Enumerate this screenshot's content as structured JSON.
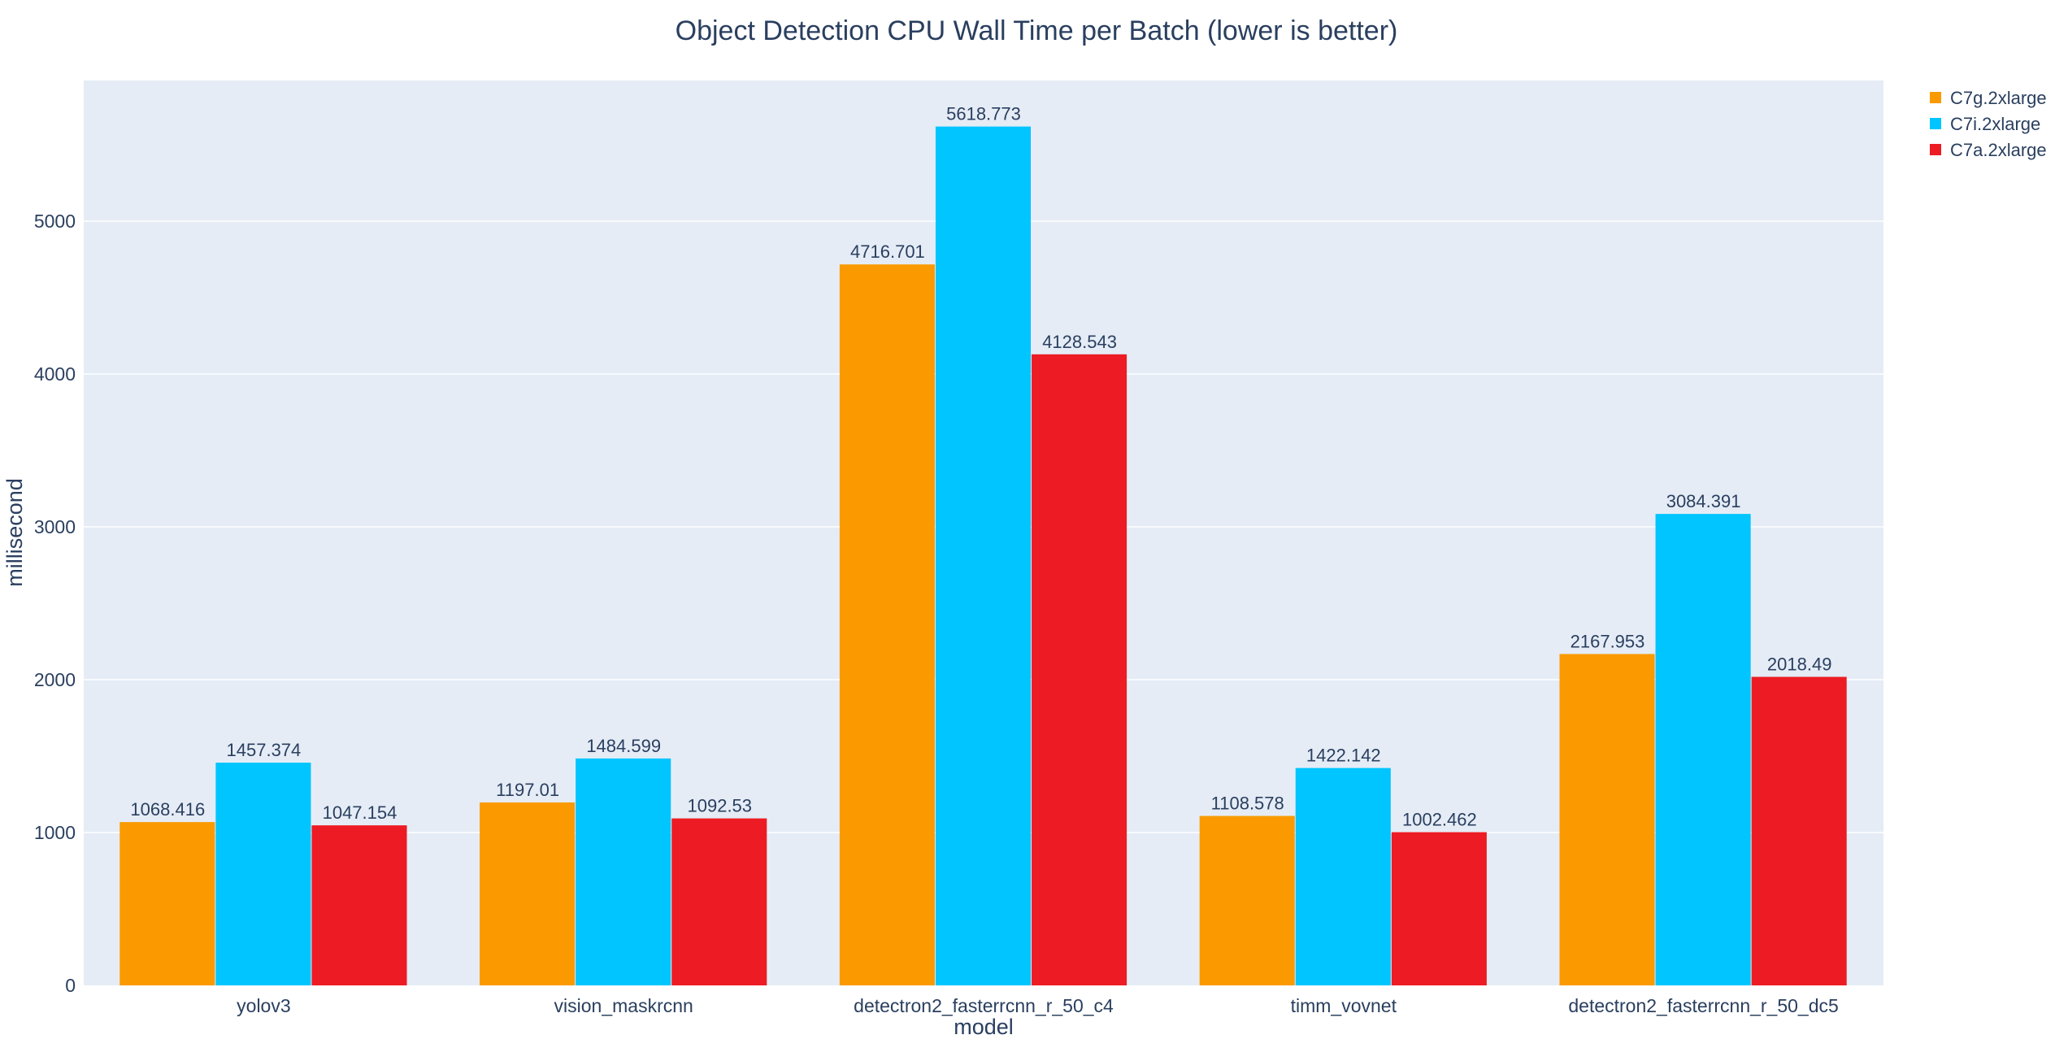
{
  "chart_data": {
    "type": "bar",
    "title": "Object Detection CPU Wall Time per Batch (lower is better)",
    "xlabel": "model",
    "ylabel": "millisecond",
    "categories": [
      "yolov3",
      "vision_maskrcnn",
      "detectron2_fasterrcnn_r_50_c4",
      "timm_vovnet",
      "detectron2_fasterrcnn_r_50_dc5"
    ],
    "series": [
      {
        "name": "C7g.2xlarge",
        "color": "#fa9a00",
        "values": [
          1068.416,
          1197.01,
          4716.701,
          1108.578,
          2167.953
        ]
      },
      {
        "name": "C7i.2xlarge",
        "color": "#00c5ff",
        "values": [
          1457.374,
          1484.599,
          5618.773,
          1422.142,
          3084.391
        ]
      },
      {
        "name": "C7a.2xlarge",
        "color": "#ed1c24",
        "values": [
          1047.154,
          1092.53,
          4128.543,
          1002.462,
          2018.49
        ]
      }
    ],
    "ylim": [
      0,
      5920
    ],
    "yticks": [
      0,
      1000,
      2000,
      3000,
      4000,
      5000
    ],
    "grid": true,
    "legend": "top-right",
    "plot_bg": "#e5ecf6"
  }
}
